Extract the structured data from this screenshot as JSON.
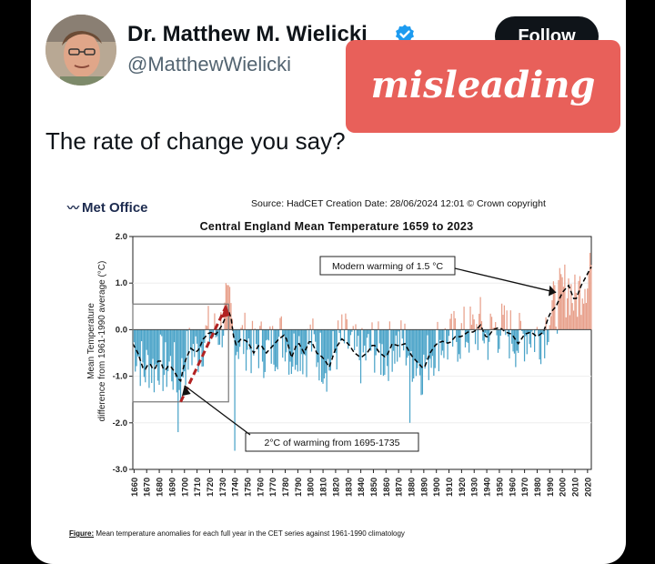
{
  "tweet": {
    "author_name": "Dr. Matthew M. Wielicki",
    "handle": "@MatthewWielicki",
    "follow_label": "Follow",
    "text": "The rate of change you say?"
  },
  "overlay": {
    "stamp_text": "misleading",
    "stamp_color": "#e8605a"
  },
  "figure": {
    "brand": "Met Office",
    "source_line": "Source: HadCET  Creation Date: 28/06/2024 12:01     © Crown copyright",
    "caption_label": "Figure:",
    "caption_text": " Mean temperature anomalies for each full year in the CET series against 1961-1990 climatology"
  },
  "chart_data": {
    "type": "bar",
    "title": "Central England Mean Temperature 1659 to 2023",
    "ylabel_line1": "Mean Temperature",
    "ylabel_line2": "difference from 1961-1990 average (°C)",
    "xlabel": "",
    "ylim": [
      -3.0,
      2.0
    ],
    "xlim": [
      1659,
      2023
    ],
    "yticks": [
      "-3.0",
      "-2.0",
      "-1.0",
      "0.0",
      "1.0",
      "2.0"
    ],
    "xticks": [
      1660,
      1670,
      1680,
      1690,
      1700,
      1710,
      1720,
      1730,
      1740,
      1750,
      1760,
      1770,
      1780,
      1790,
      1800,
      1810,
      1820,
      1830,
      1840,
      1850,
      1860,
      1870,
      1880,
      1890,
      1900,
      1910,
      1920,
      1930,
      1940,
      1950,
      1960,
      1970,
      1980,
      1990,
      2000,
      2010,
      2020
    ],
    "colors": {
      "positive": "#e8a08b",
      "negative": "#4aa3c8",
      "annotation": "#b22222"
    },
    "smoothed_anchors": [
      [
        1659,
        -0.3
      ],
      [
        1663,
        -0.5
      ],
      [
        1668,
        -0.9
      ],
      [
        1672,
        -0.7
      ],
      [
        1676,
        -0.9
      ],
      [
        1680,
        -0.6
      ],
      [
        1684,
        -0.9
      ],
      [
        1688,
        -0.75
      ],
      [
        1692,
        -0.9
      ],
      [
        1695,
        -1.05
      ],
      [
        1697,
        -1.1
      ],
      [
        1700,
        -0.7
      ],
      [
        1705,
        -0.4
      ],
      [
        1710,
        -0.5
      ],
      [
        1715,
        -0.2
      ],
      [
        1720,
        -0.05
      ],
      [
        1725,
        -0.1
      ],
      [
        1730,
        0.1
      ],
      [
        1733,
        0.3
      ],
      [
        1736,
        0.45
      ],
      [
        1740,
        -0.35
      ],
      [
        1745,
        -0.2
      ],
      [
        1750,
        -0.25
      ],
      [
        1755,
        -0.5
      ],
      [
        1760,
        -0.3
      ],
      [
        1765,
        -0.5
      ],
      [
        1770,
        -0.35
      ],
      [
        1775,
        -0.2
      ],
      [
        1780,
        -0.1
      ],
      [
        1785,
        -0.6
      ],
      [
        1790,
        -0.25
      ],
      [
        1795,
        -0.5
      ],
      [
        1800,
        -0.2
      ],
      [
        1805,
        -0.5
      ],
      [
        1810,
        -0.6
      ],
      [
        1815,
        -0.8
      ],
      [
        1820,
        -0.4
      ],
      [
        1825,
        -0.2
      ],
      [
        1830,
        -0.3
      ],
      [
        1835,
        -0.5
      ],
      [
        1840,
        -0.6
      ],
      [
        1845,
        -0.5
      ],
      [
        1850,
        -0.3
      ],
      [
        1855,
        -0.5
      ],
      [
        1860,
        -0.6
      ],
      [
        1865,
        -0.3
      ],
      [
        1870,
        -0.35
      ],
      [
        1875,
        -0.3
      ],
      [
        1880,
        -0.55
      ],
      [
        1885,
        -0.7
      ],
      [
        1890,
        -0.85
      ],
      [
        1895,
        -0.5
      ],
      [
        1900,
        -0.3
      ],
      [
        1905,
        -0.25
      ],
      [
        1910,
        -0.3
      ],
      [
        1915,
        -0.15
      ],
      [
        1920,
        -0.15
      ],
      [
        1925,
        -0.05
      ],
      [
        1930,
        -0.05
      ],
      [
        1935,
        0.1
      ],
      [
        1940,
        -0.2
      ],
      [
        1945,
        0.0
      ],
      [
        1950,
        0.05
      ],
      [
        1955,
        -0.05
      ],
      [
        1960,
        -0.1
      ],
      [
        1965,
        -0.3
      ],
      [
        1970,
        -0.1
      ],
      [
        1975,
        -0.05
      ],
      [
        1980,
        -0.15
      ],
      [
        1985,
        -0.05
      ],
      [
        1990,
        0.35
      ],
      [
        1995,
        0.5
      ],
      [
        2000,
        0.8
      ],
      [
        2005,
        0.95
      ],
      [
        2010,
        0.6
      ],
      [
        2015,
        0.95
      ],
      [
        2020,
        1.2
      ],
      [
        2023,
        1.35
      ]
    ],
    "annotations": [
      {
        "text": "Modern warming of 1.5 °C"
      },
      {
        "text": "2°C of warming from 1695-1735"
      }
    ]
  }
}
